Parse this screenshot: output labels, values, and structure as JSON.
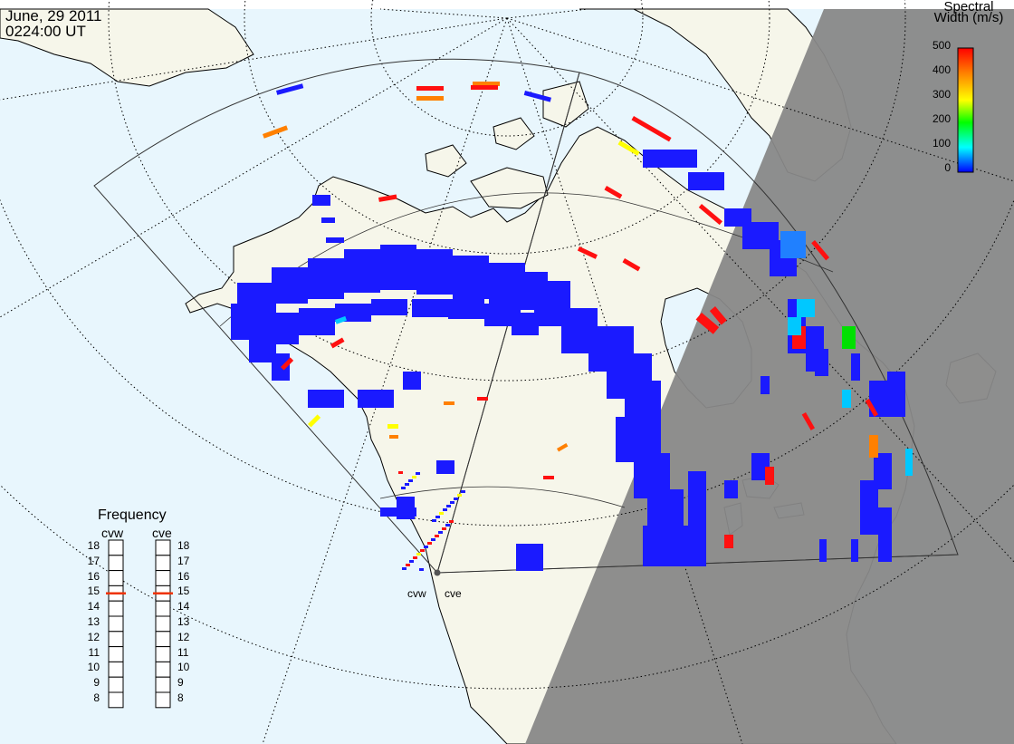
{
  "header": {
    "date": "June, 29 2011",
    "time": "0224:00 UT"
  },
  "colorbar": {
    "title_line1": "Spectral",
    "title_line2": "Width (m/s)",
    "ticks": [
      "500",
      "400",
      "300",
      "200",
      "100",
      "0"
    ],
    "gradient": [
      "#ff0000",
      "#ff7f00",
      "#ffff00",
      "#00ff00",
      "#00ffff",
      "#0000ff"
    ]
  },
  "frequency_panel": {
    "title": "Frequency",
    "radars": [
      {
        "name": "cvw",
        "value_mhz": 15
      },
      {
        "name": "cve",
        "value_mhz": 15
      }
    ],
    "ticks": [
      "18",
      "17",
      "16",
      "15",
      "14",
      "13",
      "12",
      "11",
      "10",
      "9",
      "8"
    ]
  },
  "sites": [
    {
      "label": "cvw"
    },
    {
      "label": "cve"
    }
  ],
  "colors": {
    "ocean": "#e8f6fd",
    "land": "#f6f6ea",
    "night": "#888888",
    "coast": "#000000",
    "indicator": "#ee3300"
  }
}
